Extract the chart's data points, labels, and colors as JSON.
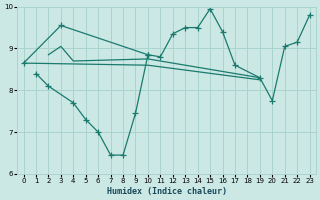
{
  "xlabel": "Humidex (Indice chaleur)",
  "bg_color": "#cce8e4",
  "line_color": "#1a7a6e",
  "marker": "+",
  "markersize": 4,
  "linewidth": 0.9,
  "xlim": [
    -0.5,
    23.5
  ],
  "ylim": [
    6,
    10
  ],
  "xticks": [
    0,
    1,
    2,
    3,
    4,
    5,
    6,
    7,
    8,
    9,
    10,
    11,
    12,
    13,
    14,
    15,
    16,
    17,
    18,
    19,
    20,
    21,
    22,
    23
  ],
  "yticks": [
    6,
    7,
    8,
    9,
    10
  ],
  "grid_color": "#aad4ce",
  "lines": [
    {
      "x": [
        0,
        3,
        10,
        11,
        12,
        13,
        14,
        15,
        16,
        17,
        19,
        20,
        21,
        22,
        23
      ],
      "y": [
        8.65,
        9.55,
        8.85,
        8.8,
        9.35,
        9.5,
        9.5,
        9.95,
        9.4,
        8.6,
        8.3,
        7.75,
        9.05,
        9.15,
        9.8
      ],
      "marker": true
    },
    {
      "x": [
        2,
        3,
        4,
        10,
        19
      ],
      "y": [
        8.85,
        9.05,
        8.7,
        8.75,
        8.3
      ],
      "marker": false
    },
    {
      "x": [
        0,
        10,
        19
      ],
      "y": [
        8.65,
        8.6,
        8.25
      ],
      "marker": false
    },
    {
      "x": [
        1,
        2,
        4,
        5,
        6,
        7,
        8,
        9,
        10
      ],
      "y": [
        8.4,
        8.1,
        7.7,
        7.3,
        7.0,
        6.45,
        6.45,
        7.45,
        8.85
      ],
      "marker": true
    }
  ]
}
